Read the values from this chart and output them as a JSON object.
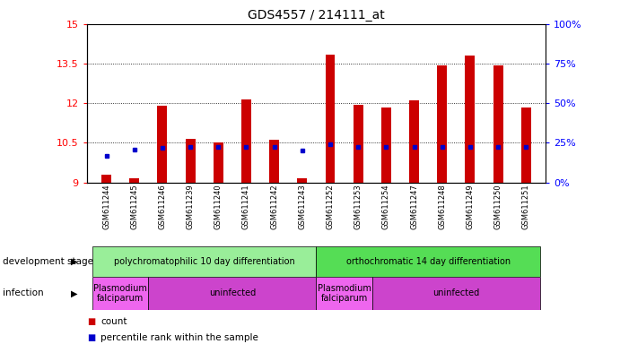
{
  "title": "GDS4557 / 214111_at",
  "samples": [
    "GSM611244",
    "GSM611245",
    "GSM611246",
    "GSM611239",
    "GSM611240",
    "GSM611241",
    "GSM611242",
    "GSM611243",
    "GSM611252",
    "GSM611253",
    "GSM611254",
    "GSM611247",
    "GSM611248",
    "GSM611249",
    "GSM611250",
    "GSM611251"
  ],
  "count_values": [
    9.3,
    9.15,
    11.9,
    10.65,
    10.5,
    12.15,
    10.6,
    9.15,
    13.85,
    11.95,
    11.85,
    12.1,
    13.45,
    13.8,
    13.45,
    11.85
  ],
  "percentile_values": [
    10.0,
    10.25,
    10.3,
    10.35,
    10.35,
    10.35,
    10.35,
    10.2,
    10.45,
    10.35,
    10.35,
    10.35,
    10.35,
    10.35,
    10.35,
    10.35
  ],
  "ymin": 9,
  "ymax": 15,
  "yticks": [
    9,
    10.5,
    12,
    13.5,
    15
  ],
  "yticks_right": [
    0,
    25,
    50,
    75,
    100
  ],
  "bar_color": "#cc0000",
  "percentile_color": "#0000cc",
  "bg_color": "#ffffff",
  "dev_stage_groups": [
    {
      "label": "polychromatophilic 10 day differentiation",
      "start": 0,
      "end": 7,
      "color": "#99ee99"
    },
    {
      "label": "orthochromatic 14 day differentiation",
      "start": 8,
      "end": 15,
      "color": "#55dd55"
    }
  ],
  "infection_groups": [
    {
      "label": "Plasmodium\nfalciparum",
      "start": 0,
      "end": 1,
      "color": "#ee66ee"
    },
    {
      "label": "uninfected",
      "start": 2,
      "end": 7,
      "color": "#cc44cc"
    },
    {
      "label": "Plasmodium\nfalciparum",
      "start": 8,
      "end": 9,
      "color": "#ee66ee"
    },
    {
      "label": "uninfected",
      "start": 10,
      "end": 15,
      "color": "#cc44cc"
    }
  ],
  "dev_label": "development stage",
  "inf_label": "infection",
  "legend_count": "count",
  "legend_pct": "percentile rank within the sample",
  "bar_width": 0.35
}
